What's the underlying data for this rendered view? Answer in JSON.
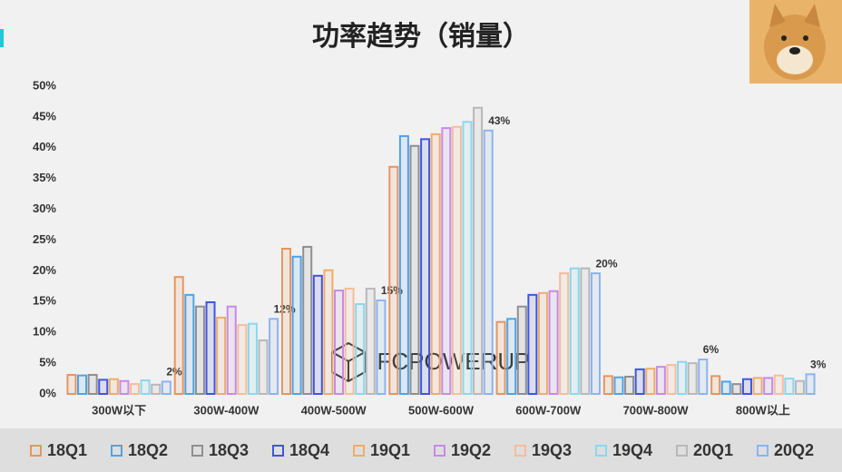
{
  "chart_data": {
    "type": "bar",
    "title": "功率趋势（销量）",
    "watermark": "FCPOWERUP",
    "categories": [
      "300W以下",
      "300W-400W",
      "400W-500W",
      "500W-600W",
      "600W-700W",
      "700W-800W",
      "800W以上"
    ],
    "series": [
      {
        "name": "18Q1",
        "color": "#e8955e",
        "values": [
          3.1,
          19.0,
          23.6,
          36.9,
          11.7,
          2.9,
          2.9
        ]
      },
      {
        "name": "18Q2",
        "color": "#4fa3e6",
        "values": [
          3.0,
          16.1,
          22.3,
          41.9,
          12.2,
          2.7,
          2.0
        ]
      },
      {
        "name": "18Q3",
        "color": "#8f8f8f",
        "values": [
          3.1,
          14.2,
          23.9,
          40.3,
          14.2,
          2.8,
          1.6
        ]
      },
      {
        "name": "18Q4",
        "color": "#3f55e0",
        "values": [
          2.3,
          14.9,
          19.2,
          41.4,
          16.1,
          4.0,
          2.4
        ]
      },
      {
        "name": "19Q1",
        "color": "#f0ac68",
        "values": [
          2.4,
          12.4,
          20.1,
          42.2,
          16.4,
          4.1,
          2.6
        ]
      },
      {
        "name": "19Q2",
        "color": "#c58be6",
        "values": [
          2.1,
          14.2,
          16.8,
          43.2,
          16.7,
          4.4,
          2.6
        ]
      },
      {
        "name": "19Q3",
        "color": "#f5bd9c",
        "values": [
          1.6,
          11.2,
          17.1,
          43.4,
          19.6,
          4.7,
          3.0
        ]
      },
      {
        "name": "19Q4",
        "color": "#8ad8ef",
        "values": [
          2.2,
          11.4,
          14.6,
          44.2,
          20.4,
          5.2,
          2.5
        ]
      },
      {
        "name": "20Q1",
        "color": "#b8b8b8",
        "values": [
          1.5,
          8.7,
          17.1,
          46.5,
          20.4,
          5.0,
          2.1
        ]
      },
      {
        "name": "20Q2",
        "color": "#8cb4f0",
        "values": [
          2,
          12.2,
          15.2,
          42.8,
          19.6,
          5.6,
          3.2
        ],
        "value_labels": [
          "2%",
          "12%",
          "15%",
          "43%",
          "20%",
          "6%",
          "3%"
        ]
      }
    ],
    "ylim": [
      0,
      50
    ],
    "yticks": [
      {
        "value": 0,
        "label": "0%"
      },
      {
        "value": 5,
        "label": "5%"
      },
      {
        "value": 10,
        "label": "10%"
      },
      {
        "value": 15,
        "label": "15%"
      },
      {
        "value": 20,
        "label": "20%"
      },
      {
        "value": 25,
        "label": "25%"
      },
      {
        "value": 30,
        "label": "30%"
      },
      {
        "value": 35,
        "label": "35%"
      },
      {
        "value": 40,
        "label": "40%"
      },
      {
        "value": 45,
        "label": "45%"
      },
      {
        "value": 50,
        "label": "50%"
      }
    ],
    "grid": false,
    "legend": "bottom"
  }
}
